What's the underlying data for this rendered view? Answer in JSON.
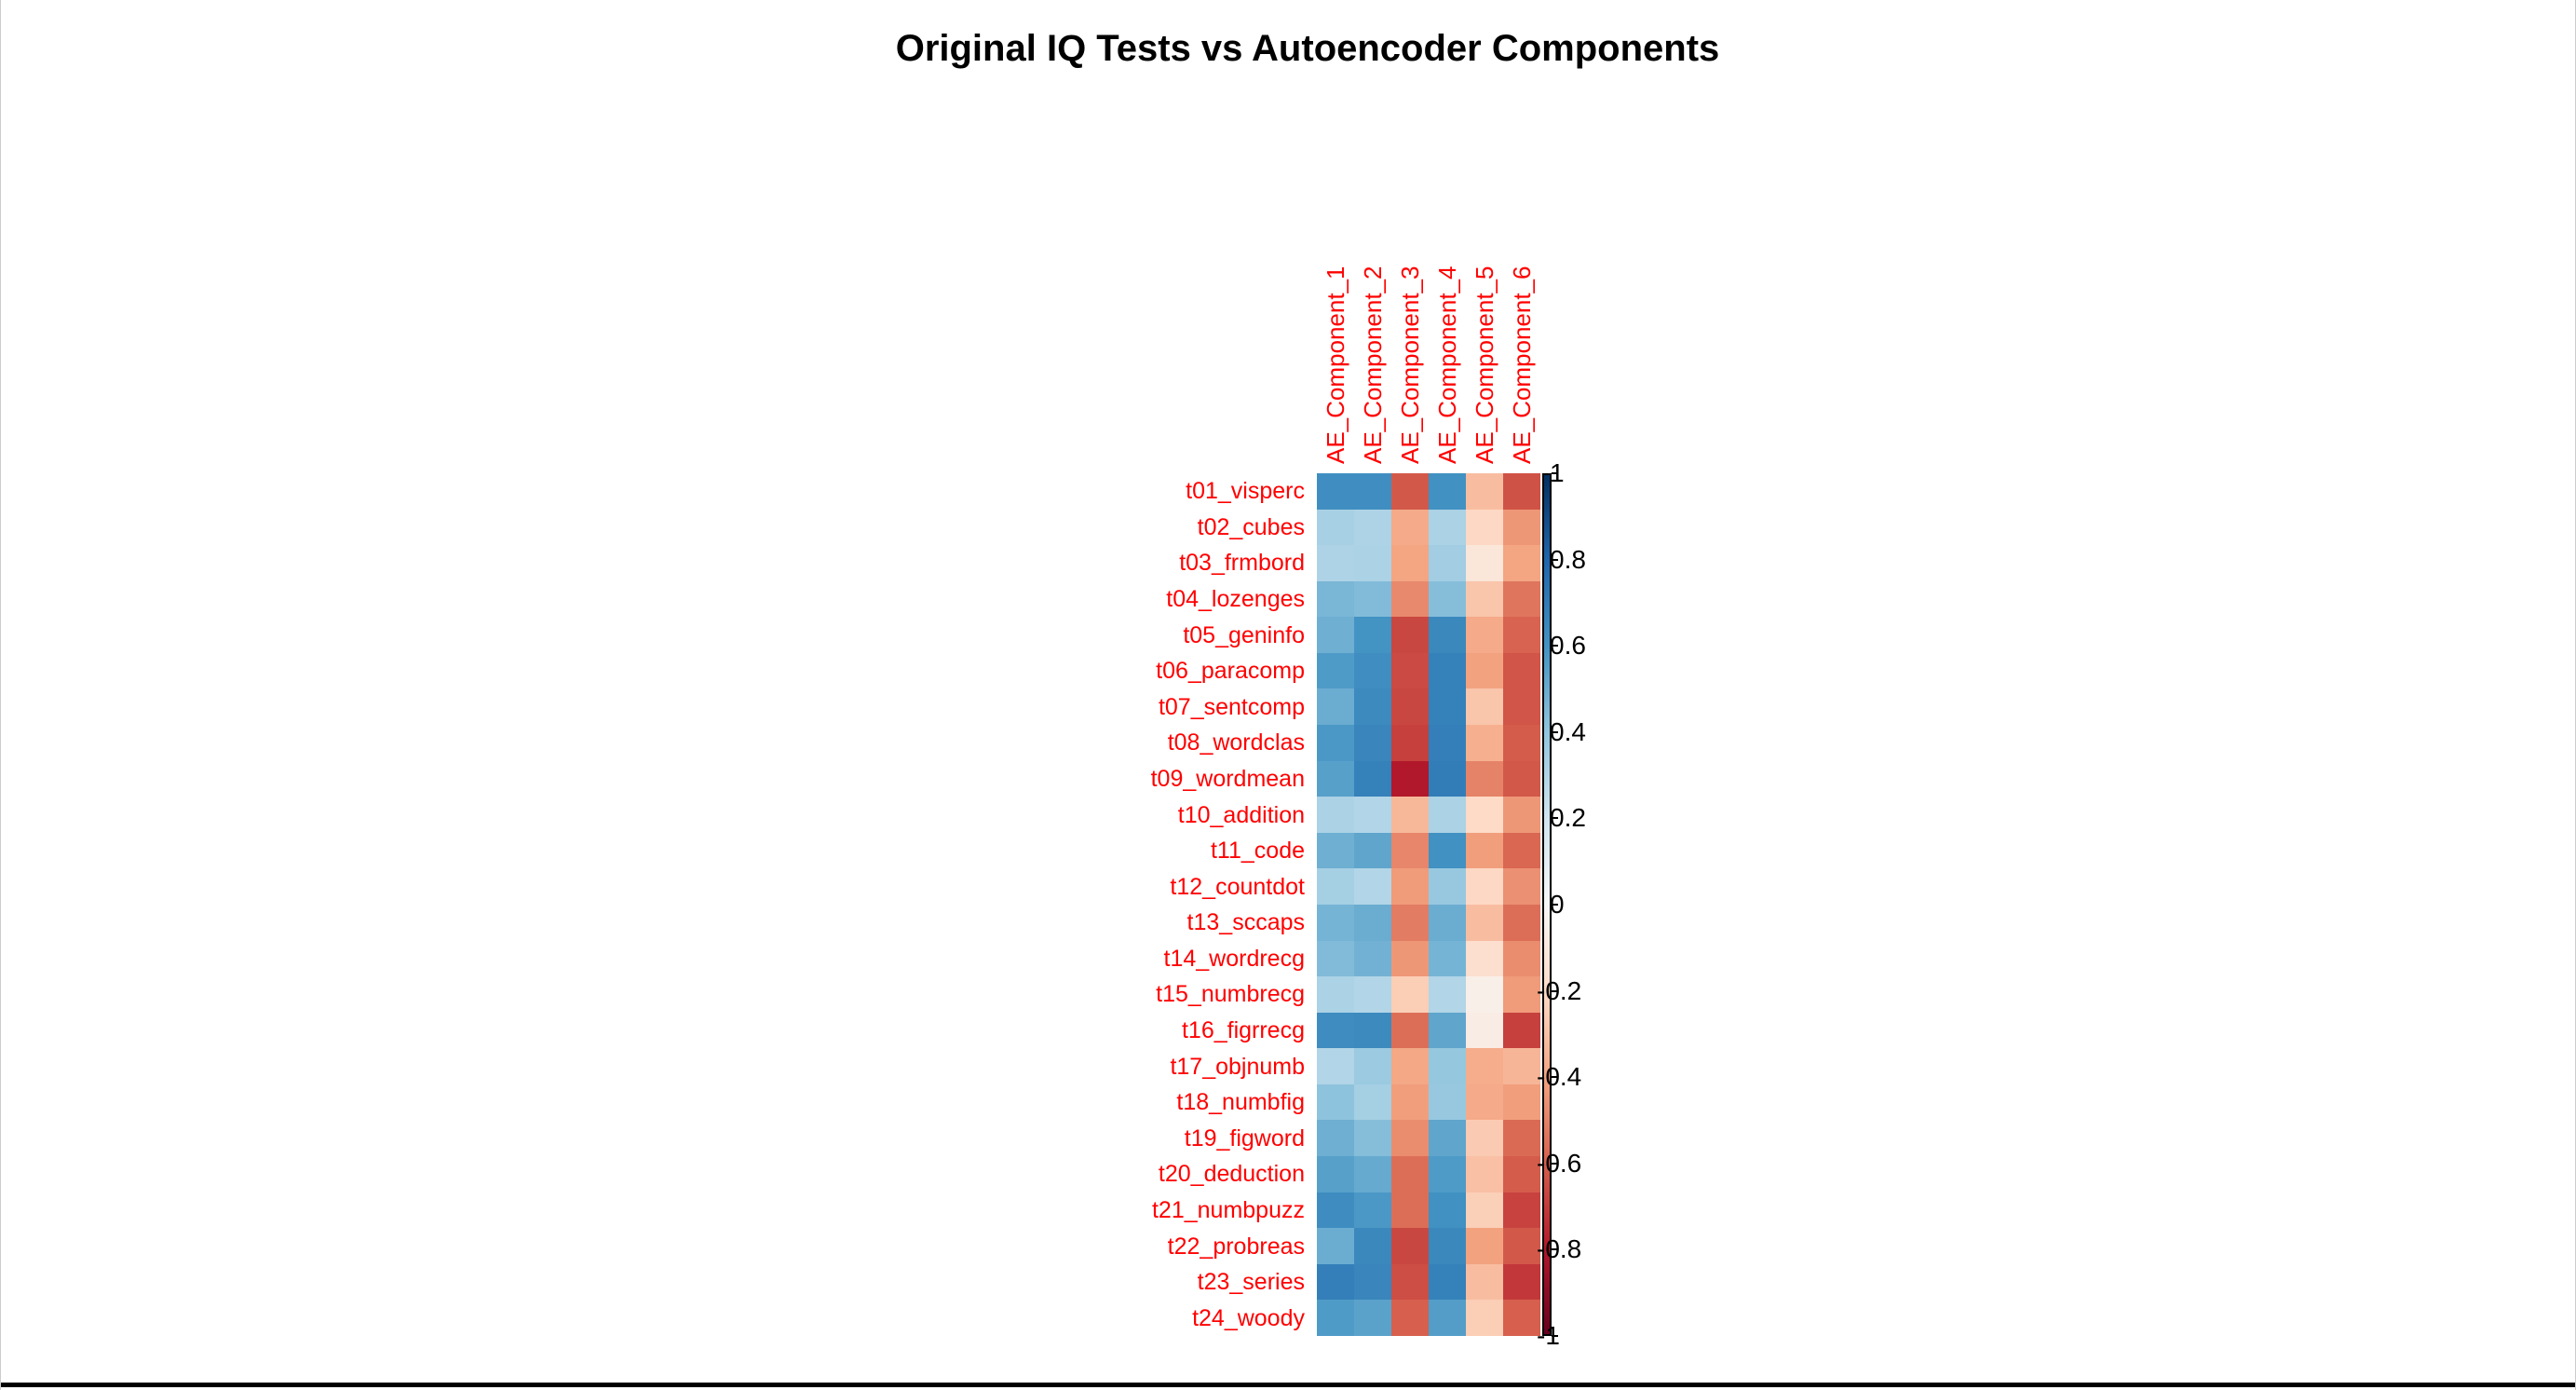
{
  "chart_data": {
    "type": "heatmap",
    "title": "Original IQ Tests vs Autoencoder Components",
    "rows": [
      "t01_visperc",
      "t02_cubes",
      "t03_frmbord",
      "t04_lozenges",
      "t05_geninfo",
      "t06_paracomp",
      "t07_sentcomp",
      "t08_wordclas",
      "t09_wordmean",
      "t10_addition",
      "t11_code",
      "t12_countdot",
      "t13_sccaps",
      "t14_wordrecg",
      "t15_numbrecg",
      "t16_figrrecg",
      "t17_objnumb",
      "t18_numbfig",
      "t19_figword",
      "t20_deduction",
      "t21_numbpuzz",
      "t22_probreas",
      "t23_series",
      "t24_woody"
    ],
    "columns": [
      "AE_Component_1",
      "AE_Component_2",
      "AE_Component_3",
      "AE_Component_4",
      "AE_Component_5",
      "AE_Component_6"
    ],
    "values": [
      [
        0.62,
        0.62,
        -0.62,
        0.61,
        -0.31,
        -0.64
      ],
      [
        0.33,
        0.31,
        -0.38,
        0.32,
        -0.21,
        -0.44
      ],
      [
        0.31,
        0.32,
        -0.4,
        0.35,
        -0.12,
        -0.4
      ],
      [
        0.46,
        0.44,
        -0.48,
        0.43,
        -0.28,
        -0.54
      ],
      [
        0.49,
        0.6,
        -0.67,
        0.65,
        -0.38,
        -0.59
      ],
      [
        0.57,
        0.62,
        -0.66,
        0.68,
        -0.41,
        -0.63
      ],
      [
        0.5,
        0.64,
        -0.67,
        0.68,
        -0.28,
        -0.63
      ],
      [
        0.58,
        0.66,
        -0.69,
        0.69,
        -0.36,
        -0.61
      ],
      [
        0.55,
        0.68,
        -0.8,
        0.7,
        -0.5,
        -0.62
      ],
      [
        0.32,
        0.3,
        -0.33,
        0.32,
        -0.2,
        -0.44
      ],
      [
        0.49,
        0.53,
        -0.49,
        0.61,
        -0.42,
        -0.58
      ],
      [
        0.34,
        0.3,
        -0.43,
        0.38,
        -0.21,
        -0.46
      ],
      [
        0.47,
        0.5,
        -0.52,
        0.5,
        -0.31,
        -0.56
      ],
      [
        0.44,
        0.48,
        -0.44,
        0.47,
        -0.17,
        -0.47
      ],
      [
        0.32,
        0.3,
        -0.25,
        0.3,
        -0.06,
        -0.43
      ],
      [
        0.63,
        0.64,
        -0.56,
        0.53,
        -0.08,
        -0.69
      ],
      [
        0.3,
        0.37,
        -0.39,
        0.39,
        -0.37,
        -0.34
      ],
      [
        0.41,
        0.34,
        -0.42,
        0.38,
        -0.38,
        -0.42
      ],
      [
        0.49,
        0.43,
        -0.47,
        0.53,
        -0.26,
        -0.57
      ],
      [
        0.55,
        0.51,
        -0.56,
        0.57,
        -0.3,
        -0.61
      ],
      [
        0.63,
        0.58,
        -0.56,
        0.61,
        -0.24,
        -0.68
      ],
      [
        0.5,
        0.65,
        -0.67,
        0.65,
        -0.41,
        -0.62
      ],
      [
        0.69,
        0.66,
        -0.65,
        0.68,
        -0.31,
        -0.71
      ],
      [
        0.57,
        0.54,
        -0.6,
        0.56,
        -0.25,
        -0.6
      ]
    ],
    "value_range": [
      -1,
      1
    ],
    "colorbar_ticks": [
      "1",
      "0.8",
      "0.6",
      "0.4",
      "0.2",
      "0",
      "-0.2",
      "-0.4",
      "-0.6",
      "-0.8",
      "-1"
    ],
    "colorbar_position": "right",
    "grid": false,
    "colormap": {
      "name": "RdBu",
      "stops": [
        "#67001f",
        "#b2182b",
        "#d6604d",
        "#f4a582",
        "#fddbc7",
        "#f7f7f7",
        "#d1e5f0",
        "#92c5de",
        "#4393c3",
        "#2166ac",
        "#053061"
      ]
    },
    "label_color": "#ff0000",
    "tick_label_color": "#000000"
  },
  "window": {
    "bottom_border_color": "#000000"
  }
}
